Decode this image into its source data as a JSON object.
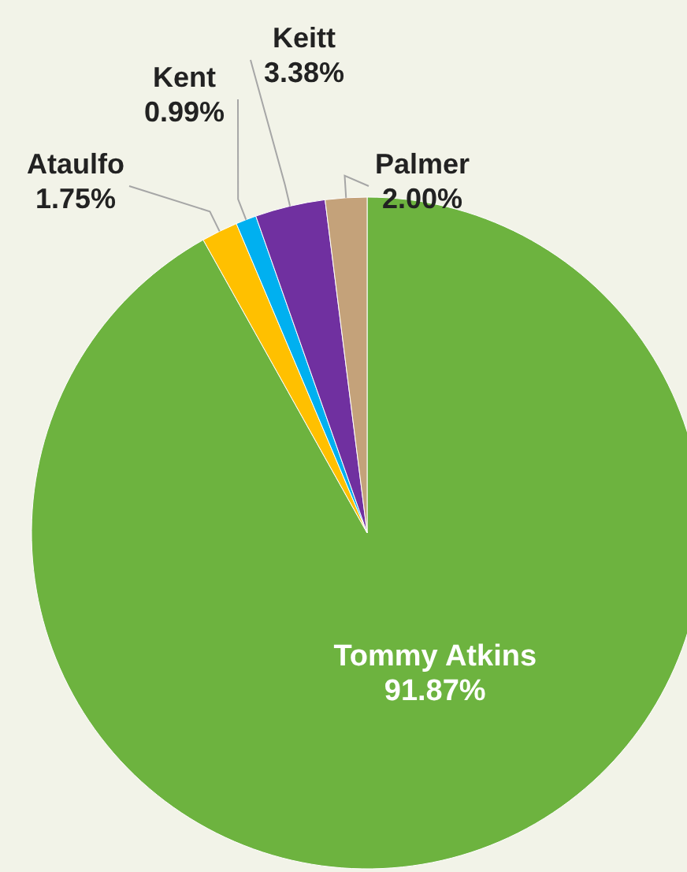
{
  "chart_data": {
    "type": "pie",
    "categories": [
      "Tommy Atkins",
      "Ataulfo",
      "Kent",
      "Keitt",
      "Palmer"
    ],
    "values": [
      91.87,
      1.75,
      0.99,
      3.38,
      2.0
    ],
    "value_labels": [
      "91.87%",
      "1.75%",
      "0.99%",
      "3.38%",
      "2.00%"
    ],
    "colors": [
      "#6db33f",
      "#ffc000",
      "#00b0f0",
      "#7030a0",
      "#c4a27a"
    ],
    "legend": false
  }
}
